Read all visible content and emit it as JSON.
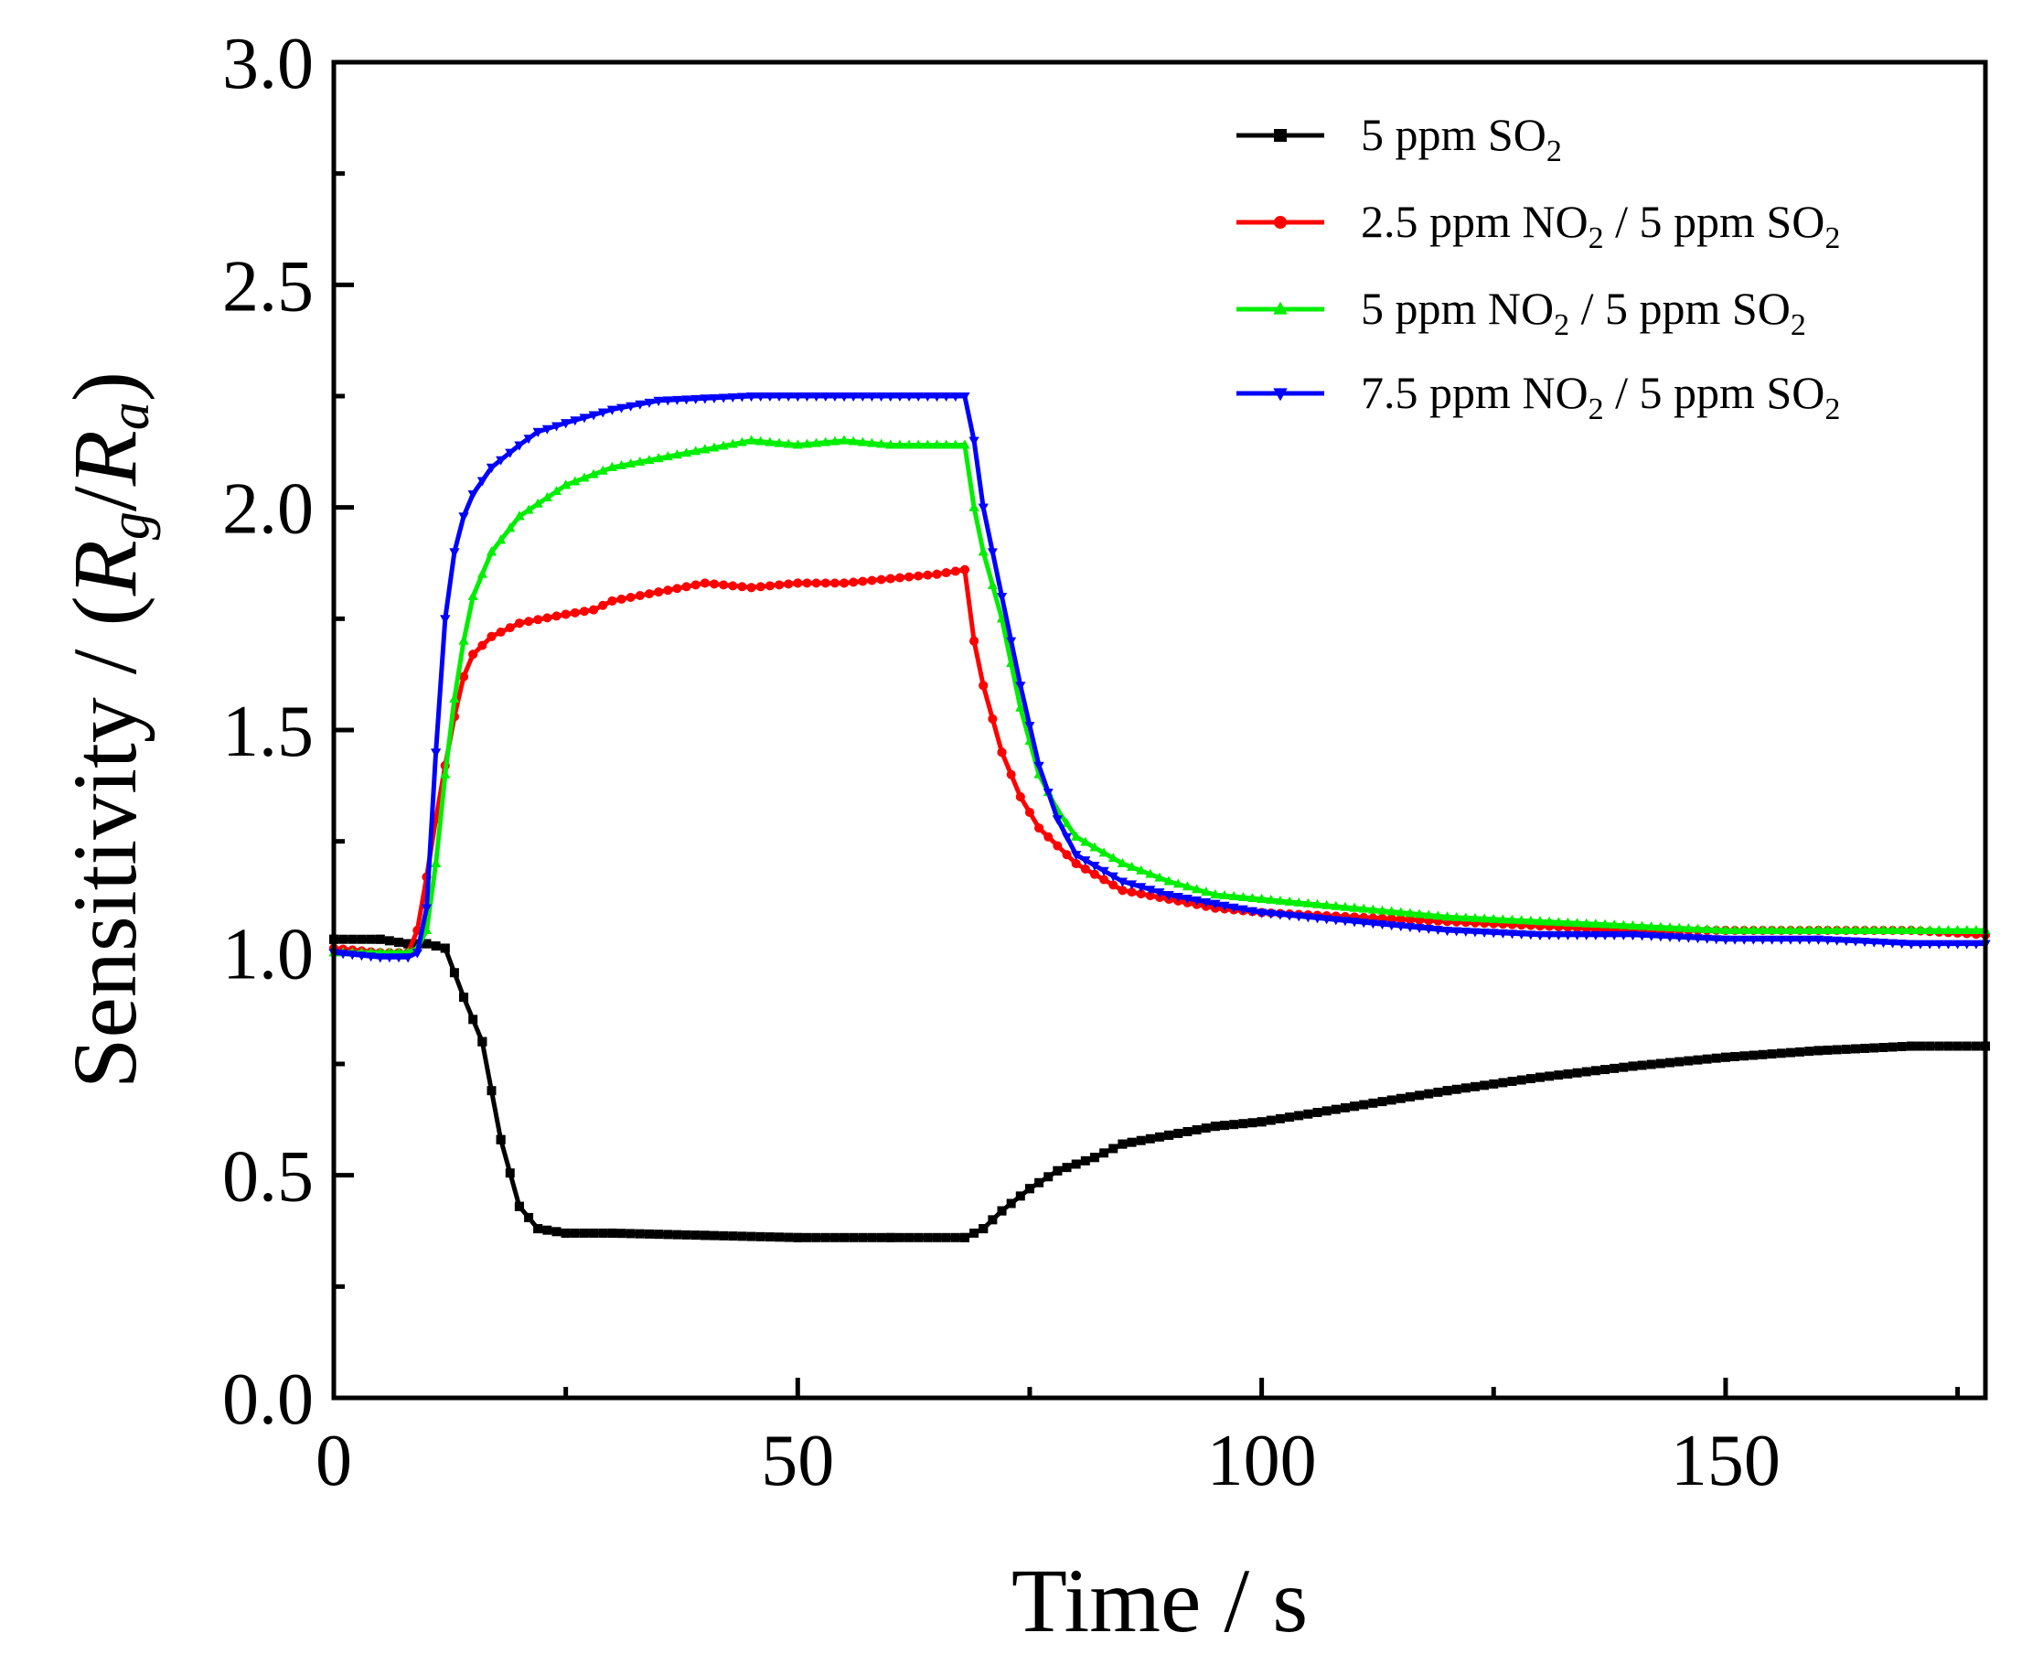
{
  "chart_data": {
    "type": "line",
    "title": "",
    "xlabel": "Time / s",
    "ylabel_prefix": "Sensitivity / (",
    "ylabel_rg_main": "R",
    "ylabel_rg_sub": "g",
    "ylabel_sep": "/",
    "ylabel_ra_main": "R",
    "ylabel_ra_sub": "a",
    "ylabel_suffix": ")",
    "xlim": [
      0,
      178
    ],
    "ylim": [
      0,
      3
    ],
    "x_ticks": [
      0,
      50,
      100,
      150
    ],
    "x_minor_ticks": [
      25,
      75,
      125,
      175
    ],
    "y_ticks": [
      0,
      0.5,
      1,
      1.5,
      2,
      2.5,
      3
    ],
    "x_tick_labels": [
      "0",
      "50",
      "100",
      "150"
    ],
    "y_tick_labels": [
      "0.0",
      "0.5",
      "1.0",
      "1.5",
      "2.0",
      "2.5",
      "3.0"
    ],
    "y_minor_ticks": [
      0.25,
      0.75,
      1.25,
      1.75,
      2.25,
      2.75
    ],
    "legend_position": "top-right",
    "series": [
      {
        "name": "5 ppm SO2",
        "label_parts": [
          "5 ppm SO",
          "2",
          ""
        ],
        "color": "#000000",
        "marker": "square",
        "points": [
          [
            0,
            1.03
          ],
          [
            5,
            1.03
          ],
          [
            8,
            1.02
          ],
          [
            10,
            1.02
          ],
          [
            12,
            1.01
          ],
          [
            14,
            0.9
          ],
          [
            16,
            0.8
          ],
          [
            18,
            0.58
          ],
          [
            20,
            0.43
          ],
          [
            22,
            0.38
          ],
          [
            25,
            0.37
          ],
          [
            30,
            0.37
          ],
          [
            40,
            0.365
          ],
          [
            50,
            0.36
          ],
          [
            60,
            0.36
          ],
          [
            68,
            0.36
          ],
          [
            70,
            0.38
          ],
          [
            72,
            0.42
          ],
          [
            75,
            0.47
          ],
          [
            78,
            0.51
          ],
          [
            82,
            0.54
          ],
          [
            85,
            0.57
          ],
          [
            90,
            0.59
          ],
          [
            95,
            0.61
          ],
          [
            100,
            0.62
          ],
          [
            110,
            0.655
          ],
          [
            120,
            0.69
          ],
          [
            130,
            0.72
          ],
          [
            140,
            0.745
          ],
          [
            150,
            0.765
          ],
          [
            160,
            0.78
          ],
          [
            170,
            0.79
          ],
          [
            178,
            0.79
          ]
        ]
      },
      {
        "name": "2.5 ppm NO2 / 5 ppm SO2",
        "label_parts": [
          "2.5 ppm NO",
          "2",
          " / 5 ppm SO",
          "2",
          ""
        ],
        "color": "#ff0000",
        "marker": "circle",
        "points": [
          [
            0,
            1.01
          ],
          [
            5,
            1.0
          ],
          [
            8,
            1.0
          ],
          [
            9,
            1.05
          ],
          [
            10,
            1.17
          ],
          [
            11,
            1.3
          ],
          [
            12,
            1.42
          ],
          [
            13,
            1.53
          ],
          [
            14,
            1.62
          ],
          [
            15,
            1.67
          ],
          [
            17,
            1.71
          ],
          [
            20,
            1.74
          ],
          [
            25,
            1.76
          ],
          [
            28,
            1.77
          ],
          [
            30,
            1.79
          ],
          [
            35,
            1.81
          ],
          [
            40,
            1.83
          ],
          [
            45,
            1.82
          ],
          [
            50,
            1.83
          ],
          [
            55,
            1.83
          ],
          [
            60,
            1.84
          ],
          [
            65,
            1.85
          ],
          [
            68,
            1.86
          ],
          [
            69,
            1.7
          ],
          [
            70,
            1.6
          ],
          [
            72,
            1.45
          ],
          [
            74,
            1.35
          ],
          [
            76,
            1.28
          ],
          [
            80,
            1.2
          ],
          [
            85,
            1.14
          ],
          [
            90,
            1.12
          ],
          [
            95,
            1.1
          ],
          [
            100,
            1.09
          ],
          [
            110,
            1.08
          ],
          [
            120,
            1.07
          ],
          [
            130,
            1.06
          ],
          [
            140,
            1.05
          ],
          [
            150,
            1.05
          ],
          [
            160,
            1.05
          ],
          [
            170,
            1.05
          ],
          [
            178,
            1.04
          ]
        ]
      },
      {
        "name": "5 ppm NO2 / 5 ppm SO2",
        "label_parts": [
          "5 ppm NO",
          "2",
          " / 5 ppm SO",
          "2",
          ""
        ],
        "color": "#00ee00",
        "marker": "triangle-up",
        "points": [
          [
            0,
            1.0
          ],
          [
            5,
            1.0
          ],
          [
            8,
            1.0
          ],
          [
            9,
            1.01
          ],
          [
            10,
            1.05
          ],
          [
            11,
            1.2
          ],
          [
            12,
            1.4
          ],
          [
            13,
            1.57
          ],
          [
            14,
            1.7
          ],
          [
            15,
            1.8
          ],
          [
            17,
            1.9
          ],
          [
            20,
            1.98
          ],
          [
            25,
            2.05
          ],
          [
            30,
            2.09
          ],
          [
            35,
            2.11
          ],
          [
            40,
            2.13
          ],
          [
            45,
            2.15
          ],
          [
            50,
            2.14
          ],
          [
            55,
            2.15
          ],
          [
            60,
            2.14
          ],
          [
            65,
            2.14
          ],
          [
            68,
            2.14
          ],
          [
            69,
            2.0
          ],
          [
            70,
            1.9
          ],
          [
            72,
            1.75
          ],
          [
            74,
            1.55
          ],
          [
            76,
            1.4
          ],
          [
            78,
            1.32
          ],
          [
            80,
            1.26
          ],
          [
            85,
            1.2
          ],
          [
            90,
            1.16
          ],
          [
            95,
            1.13
          ],
          [
            100,
            1.12
          ],
          [
            110,
            1.1
          ],
          [
            120,
            1.08
          ],
          [
            130,
            1.07
          ],
          [
            140,
            1.06
          ],
          [
            150,
            1.05
          ],
          [
            160,
            1.05
          ],
          [
            170,
            1.05
          ],
          [
            178,
            1.05
          ]
        ]
      },
      {
        "name": "7.5 ppm NO2 / 5 ppm SO2",
        "label_parts": [
          "7.5 ppm NO",
          "2",
          " / 5 ppm SO",
          "2",
          ""
        ],
        "color": "#0000ff",
        "marker": "triangle-down",
        "points": [
          [
            0,
            1.0
          ],
          [
            5,
            0.99
          ],
          [
            8,
            0.99
          ],
          [
            9,
            1.0
          ],
          [
            10,
            1.1
          ],
          [
            11,
            1.45
          ],
          [
            12,
            1.75
          ],
          [
            13,
            1.9
          ],
          [
            14,
            1.98
          ],
          [
            15,
            2.03
          ],
          [
            17,
            2.09
          ],
          [
            20,
            2.14
          ],
          [
            22,
            2.17
          ],
          [
            25,
            2.19
          ],
          [
            30,
            2.22
          ],
          [
            35,
            2.24
          ],
          [
            40,
            2.245
          ],
          [
            45,
            2.25
          ],
          [
            50,
            2.25
          ],
          [
            55,
            2.25
          ],
          [
            60,
            2.25
          ],
          [
            65,
            2.25
          ],
          [
            68,
            2.25
          ],
          [
            69,
            2.15
          ],
          [
            70,
            2.0
          ],
          [
            72,
            1.8
          ],
          [
            74,
            1.6
          ],
          [
            76,
            1.42
          ],
          [
            78,
            1.3
          ],
          [
            80,
            1.22
          ],
          [
            85,
            1.16
          ],
          [
            90,
            1.13
          ],
          [
            95,
            1.11
          ],
          [
            100,
            1.09
          ],
          [
            110,
            1.07
          ],
          [
            120,
            1.05
          ],
          [
            130,
            1.04
          ],
          [
            140,
            1.04
          ],
          [
            150,
            1.03
          ],
          [
            160,
            1.03
          ],
          [
            170,
            1.02
          ],
          [
            178,
            1.02
          ]
        ]
      }
    ]
  }
}
